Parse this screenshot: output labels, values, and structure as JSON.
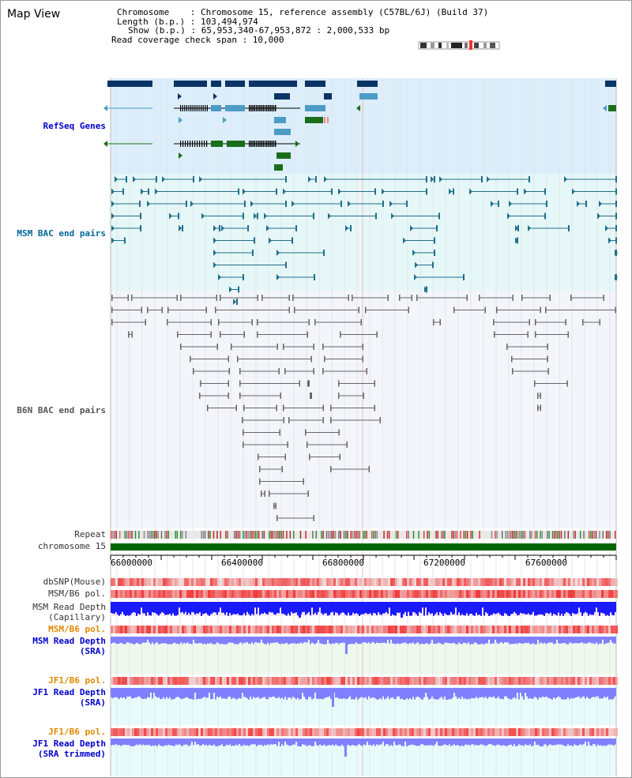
{
  "view": {
    "title": "Map View",
    "info": {
      "chromosome": "Chromosome    : Chromosome 15, reference assembly (C57BL/6J) (Build 37)",
      "length": "Length (b.p.) : 103,494,974",
      "show": "Show (b.p.) : 65,953,340-67,953,872 : 2,000,533 bp",
      "coverage": "Read coverage check span : 10,000"
    }
  },
  "tracks": {
    "refseq": "RefSeq Genes",
    "msm_bac": "MSM BAC end pairs",
    "b6n_bac": "B6N BAC end pairs",
    "repeat": "Repeat",
    "chromosome": "chromosome 15",
    "dbsnp": "dbSNP(Mouse)",
    "msm_b6_pol": "MSM/B6 pol.",
    "msm_depth_cap": "MSM Read Depth",
    "msm_depth_cap_sub": "(Capillary)",
    "msm_b6_pol2": "MSM/B6 pol.",
    "msm_depth_sra": "MSM Read Depth",
    "msm_depth_sra_sub": "(SRA)",
    "jf1_pol": "JF1/B6 pol.",
    "jf1_depth": "JF1 Read Depth",
    "jf1_depth_sub": "(SRA)",
    "jf1_pol2": "JF1/B6 pol.",
    "jf1_depth2": "JF1 Read Depth",
    "jf1_depth2_sub": "(SRA trimmed)"
  },
  "axis": {
    "ticks": [
      "66000000",
      "66400000",
      "66800000",
      "67200000",
      "67600000"
    ]
  },
  "colors": {
    "refseq_bg": "#dbeefa",
    "msm_bg": "#e6f7f7",
    "b6n_bg": "#f4f4fb",
    "chrom_bar": "#006600",
    "gene_dark": "#0a3366",
    "gene_light": "#4d9cc8",
    "gene_green": "#1a6e1a",
    "msm_line": "#1f6f8b",
    "b6n_line": "#666666",
    "depth_blue": "#1a1aff",
    "depth_light": "#8080ff",
    "pol_red": "#ee3333"
  }
}
